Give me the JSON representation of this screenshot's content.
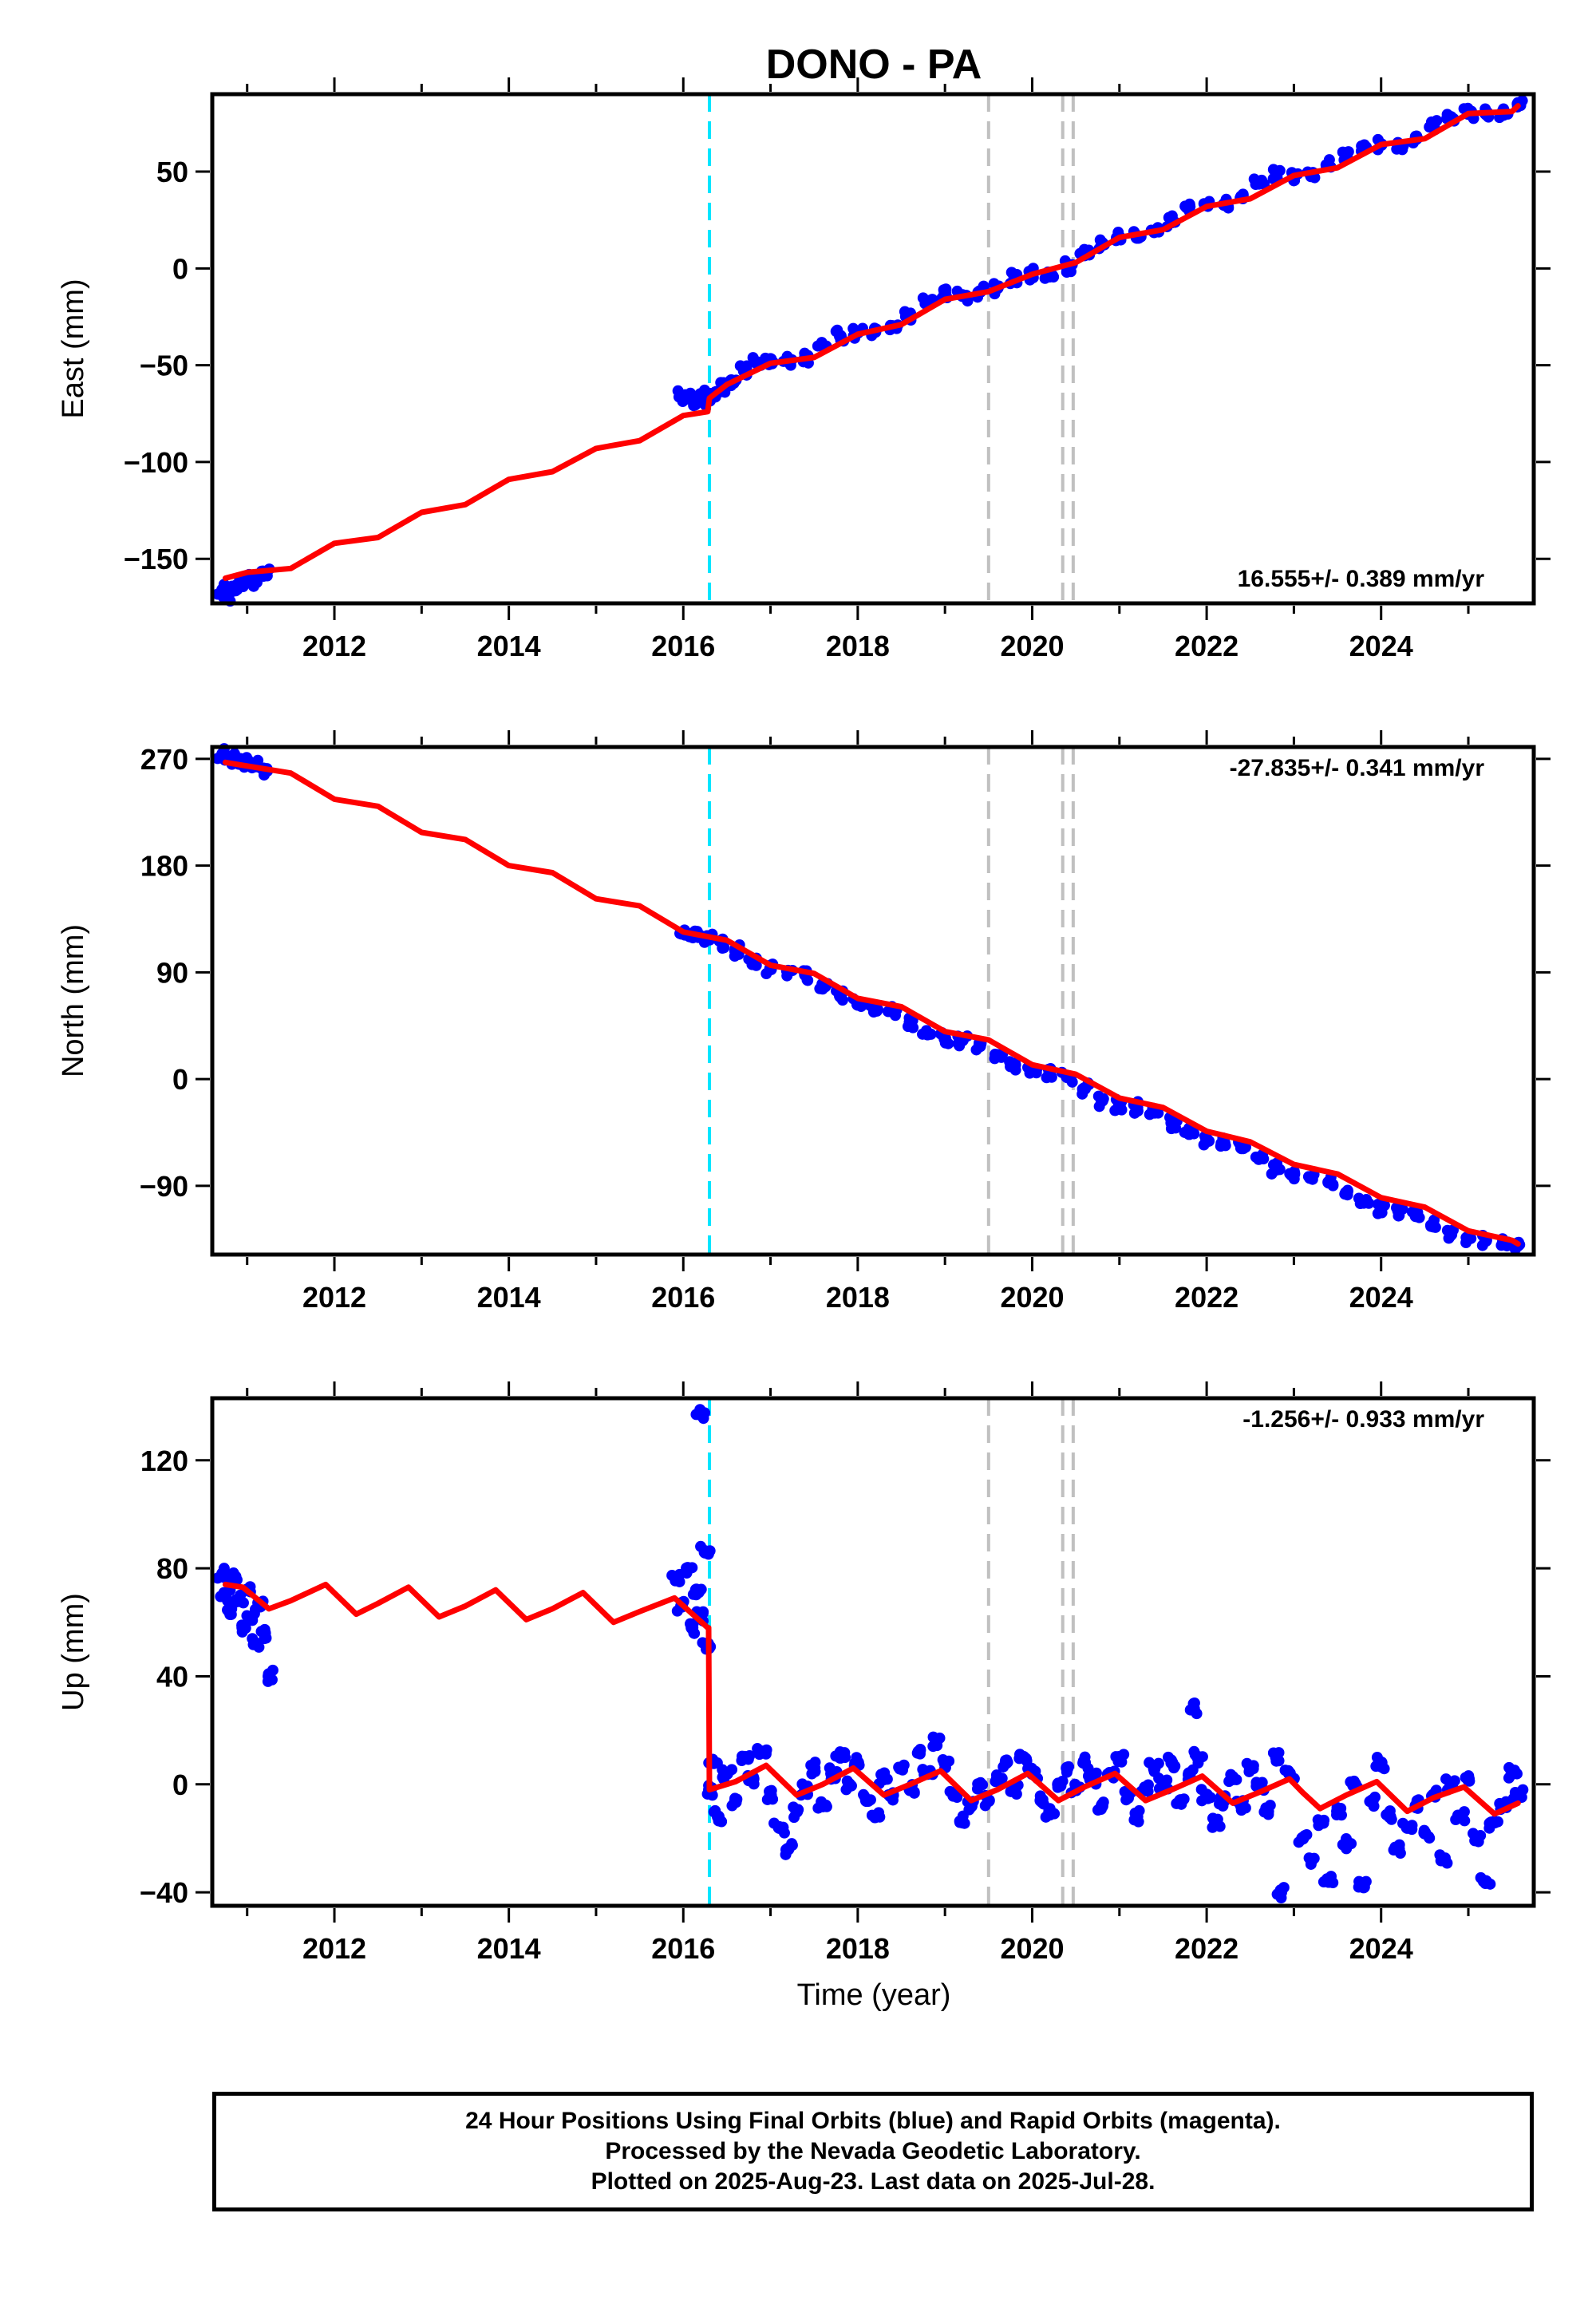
{
  "title": "DONO - PA",
  "xlabel": "Time (year)",
  "colors": {
    "data_points": "#0000ff",
    "model_line": "#ff0000",
    "antenna_change": "#00e5ff",
    "event_lines": "#c0c0c0"
  },
  "x_ticks": [
    "2012",
    "2014",
    "2016",
    "2018",
    "2020",
    "2022",
    "2024"
  ],
  "footer": {
    "line1": "24 Hour Positions Using Final Orbits (blue) and Rapid Orbits (magenta).",
    "line2": "Processed by the Nevada Geodetic Laboratory.",
    "line3": "Plotted on 2025-Aug-23. Last data on 2025-Jul-28."
  },
  "chart_data": [
    {
      "type": "scatter",
      "ylabel": "East (mm)",
      "rate_label": "16.555+/- 0.389 mm/yr",
      "xlim": [
        2010.6,
        2025.75
      ],
      "ylim": [
        -173,
        90
      ],
      "y_ticks": [
        -150,
        -100,
        -50,
        0,
        50
      ],
      "y_tick_labels": [
        "−150",
        "−100",
        "−50",
        "0",
        "50"
      ],
      "vertical_lines": [
        {
          "x": 2016.3,
          "kind": "antenna_change"
        },
        {
          "x": 2019.5,
          "kind": "event"
        },
        {
          "x": 2020.35,
          "kind": "event"
        },
        {
          "x": 2020.47,
          "kind": "event"
        }
      ],
      "model_line": {
        "x": [
          2010.75,
          2011.0,
          2011.5,
          2012.0,
          2012.5,
          2013.0,
          2013.5,
          2014.0,
          2014.5,
          2015.0,
          2015.5,
          2016.0,
          2016.28,
          2016.3,
          2016.5,
          2017.0,
          2017.5,
          2018.0,
          2018.5,
          2019.0,
          2019.5,
          2020.0,
          2020.5,
          2021.0,
          2021.5,
          2022.0,
          2022.5,
          2023.0,
          2023.5,
          2024.0,
          2024.5,
          2025.0,
          2025.5,
          2025.57
        ],
        "y": [
          -160,
          -157,
          -155,
          -142,
          -139,
          -126,
          -122,
          -109,
          -105,
          -93,
          -89,
          -76,
          -74,
          -67,
          -60,
          -49,
          -46,
          -34,
          -29,
          -16,
          -12,
          -3,
          3,
          16,
          20,
          32,
          36,
          48,
          52,
          64,
          67,
          80,
          81,
          84
        ]
      },
      "points": [
        [
          2010.72,
          -166
        ],
        [
          2010.78,
          -169
        ],
        [
          2010.85,
          -165
        ],
        [
          2010.92,
          -164
        ],
        [
          2011.0,
          -161
        ],
        [
          2011.08,
          -162
        ],
        [
          2011.15,
          -158
        ],
        [
          2011.22,
          -157
        ],
        [
          2015.98,
          -66
        ],
        [
          2016.05,
          -67
        ],
        [
          2016.12,
          -68
        ],
        [
          2016.2,
          -66
        ],
        [
          2016.27,
          -67
        ],
        [
          2016.3,
          -68
        ],
        [
          2016.38,
          -64
        ],
        [
          2016.45,
          -61
        ],
        [
          2016.55,
          -58
        ],
        [
          2016.7,
          -53
        ],
        [
          2016.85,
          -49
        ],
        [
          2017.0,
          -47
        ],
        [
          2017.2,
          -48
        ],
        [
          2017.4,
          -46
        ],
        [
          2017.6,
          -40
        ],
        [
          2017.8,
          -35
        ],
        [
          2018.0,
          -33
        ],
        [
          2018.2,
          -32
        ],
        [
          2018.4,
          -30
        ],
        [
          2018.6,
          -24
        ],
        [
          2018.8,
          -17
        ],
        [
          2019.0,
          -13
        ],
        [
          2019.2,
          -14
        ],
        [
          2019.4,
          -12
        ],
        [
          2019.6,
          -10
        ],
        [
          2019.8,
          -5
        ],
        [
          2020.0,
          -3
        ],
        [
          2020.2,
          -4
        ],
        [
          2020.4,
          1
        ],
        [
          2020.6,
          7
        ],
        [
          2020.8,
          13
        ],
        [
          2021.0,
          16
        ],
        [
          2021.2,
          16
        ],
        [
          2021.4,
          19
        ],
        [
          2021.6,
          24
        ],
        [
          2021.8,
          32
        ],
        [
          2022.0,
          33
        ],
        [
          2022.2,
          33
        ],
        [
          2022.4,
          37
        ],
        [
          2022.6,
          44
        ],
        [
          2022.8,
          49
        ],
        [
          2023.0,
          48
        ],
        [
          2023.2,
          48
        ],
        [
          2023.4,
          53
        ],
        [
          2023.6,
          58
        ],
        [
          2023.8,
          63
        ],
        [
          2024.0,
          64
        ],
        [
          2024.2,
          63
        ],
        [
          2024.4,
          67
        ],
        [
          2024.6,
          74
        ],
        [
          2024.8,
          78
        ],
        [
          2025.0,
          80
        ],
        [
          2025.2,
          80
        ],
        [
          2025.4,
          81
        ],
        [
          2025.57,
          85
        ]
      ]
    },
    {
      "type": "scatter",
      "ylabel": "North (mm)",
      "rate_label": "-27.835+/- 0.341 mm/yr",
      "xlim": [
        2010.6,
        2025.75
      ],
      "ylim": [
        -148,
        280
      ],
      "y_ticks": [
        -90,
        0,
        90,
        180,
        270
      ],
      "y_tick_labels": [
        "−90",
        "0",
        "90",
        "180",
        "270"
      ],
      "vertical_lines": [
        {
          "x": 2016.3,
          "kind": "antenna_change"
        },
        {
          "x": 2019.5,
          "kind": "event"
        },
        {
          "x": 2020.35,
          "kind": "event"
        },
        {
          "x": 2020.47,
          "kind": "event"
        }
      ],
      "model_line": {
        "x": [
          2010.75,
          2011.0,
          2011.5,
          2012.0,
          2012.5,
          2013.0,
          2013.5,
          2014.0,
          2014.5,
          2015.0,
          2015.5,
          2016.0,
          2016.5,
          2017.0,
          2017.5,
          2018.0,
          2018.5,
          2019.0,
          2019.5,
          2020.0,
          2020.5,
          2021.0,
          2021.5,
          2022.0,
          2022.5,
          2023.0,
          2023.5,
          2024.0,
          2024.5,
          2025.0,
          2025.5,
          2025.57
        ],
        "y": [
          267,
          264,
          258,
          236,
          230,
          208,
          202,
          180,
          174,
          152,
          146,
          124,
          117,
          96,
          89,
          68,
          61,
          40,
          33,
          12,
          4,
          -16,
          -24,
          -44,
          -53,
          -72,
          -80,
          -100,
          -108,
          -128,
          -136,
          -139
        ]
      },
      "points": [
        [
          2010.72,
          274
        ],
        [
          2010.8,
          270
        ],
        [
          2010.9,
          268
        ],
        [
          2011.0,
          266
        ],
        [
          2011.1,
          264
        ],
        [
          2011.2,
          260
        ],
        [
          2015.98,
          123
        ],
        [
          2016.1,
          122
        ],
        [
          2016.2,
          120
        ],
        [
          2016.3,
          118
        ],
        [
          2016.45,
          115
        ],
        [
          2016.6,
          108
        ],
        [
          2016.8,
          98
        ],
        [
          2017.0,
          93
        ],
        [
          2017.2,
          91
        ],
        [
          2017.4,
          88
        ],
        [
          2017.6,
          80
        ],
        [
          2017.8,
          70
        ],
        [
          2018.0,
          63
        ],
        [
          2018.2,
          61
        ],
        [
          2018.4,
          57
        ],
        [
          2018.6,
          48
        ],
        [
          2018.8,
          38
        ],
        [
          2019.0,
          34
        ],
        [
          2019.2,
          33
        ],
        [
          2019.4,
          29
        ],
        [
          2019.6,
          20
        ],
        [
          2019.8,
          12
        ],
        [
          2020.0,
          7
        ],
        [
          2020.2,
          5
        ],
        [
          2020.4,
          2
        ],
        [
          2020.6,
          -8
        ],
        [
          2020.8,
          -18
        ],
        [
          2021.0,
          -22
        ],
        [
          2021.2,
          -24
        ],
        [
          2021.4,
          -28
        ],
        [
          2021.6,
          -37
        ],
        [
          2021.8,
          -46
        ],
        [
          2022.0,
          -51
        ],
        [
          2022.2,
          -54
        ],
        [
          2022.4,
          -58
        ],
        [
          2022.6,
          -67
        ],
        [
          2022.8,
          -76
        ],
        [
          2023.0,
          -80
        ],
        [
          2023.2,
          -83
        ],
        [
          2023.4,
          -87
        ],
        [
          2023.6,
          -96
        ],
        [
          2023.8,
          -104
        ],
        [
          2024.0,
          -109
        ],
        [
          2024.2,
          -111
        ],
        [
          2024.4,
          -115
        ],
        [
          2024.6,
          -124
        ],
        [
          2024.8,
          -131
        ],
        [
          2025.0,
          -134
        ],
        [
          2025.2,
          -136
        ],
        [
          2025.4,
          -138
        ],
        [
          2025.57,
          -140
        ]
      ]
    },
    {
      "type": "scatter",
      "ylabel": "Up (mm)",
      "rate_label": "-1.256+/- 0.933 mm/yr",
      "xlim": [
        2010.6,
        2025.75
      ],
      "ylim": [
        -45,
        143
      ],
      "y_ticks": [
        -40,
        0,
        40,
        80,
        120
      ],
      "y_tick_labels": [
        "−40",
        "0",
        "40",
        "80",
        "120"
      ],
      "vertical_lines": [
        {
          "x": 2016.3,
          "kind": "antenna_change"
        },
        {
          "x": 2019.5,
          "kind": "event"
        },
        {
          "x": 2020.35,
          "kind": "event"
        },
        {
          "x": 2020.47,
          "kind": "event"
        }
      ],
      "model_line": {
        "x": [
          2010.75,
          2010.95,
          2011.25,
          2011.5,
          2011.9,
          2012.25,
          2012.5,
          2012.85,
          2013.2,
          2013.5,
          2013.85,
          2014.2,
          2014.5,
          2014.85,
          2015.2,
          2015.5,
          2015.9,
          2016.28,
          2016.29,
          2016.3,
          2016.6,
          2016.95,
          2017.3,
          2017.6,
          2017.95,
          2018.3,
          2018.6,
          2018.95,
          2019.3,
          2019.6,
          2019.95,
          2020.3,
          2020.6,
          2020.95,
          2021.3,
          2021.6,
          2021.95,
          2022.3,
          2022.6,
          2022.95,
          2023.1,
          2023.3,
          2023.6,
          2023.95,
          2024.3,
          2024.6,
          2024.95,
          2025.3,
          2025.57
        ],
        "y": [
          74,
          73,
          65,
          68,
          74,
          63,
          67,
          73,
          62,
          66,
          72,
          61,
          65,
          71,
          60,
          64,
          69,
          58,
          58,
          -2,
          1,
          7,
          -4,
          0,
          6,
          -4,
          0,
          5,
          -6,
          -2,
          4,
          -6,
          -1,
          4,
          -6,
          -2,
          3,
          -7,
          -3,
          2,
          -3,
          -9,
          -4,
          1,
          -10,
          -5,
          -1,
          -11,
          -7
        ]
      },
      "points": [
        [
          2010.72,
          78
        ],
        [
          2010.75,
          70
        ],
        [
          2010.8,
          64
        ],
        [
          2010.85,
          76
        ],
        [
          2010.9,
          68
        ],
        [
          2010.95,
          58
        ],
        [
          2011.0,
          72
        ],
        [
          2011.05,
          62
        ],
        [
          2011.1,
          52
        ],
        [
          2011.15,
          66
        ],
        [
          2011.2,
          56
        ],
        [
          2011.25,
          40
        ],
        [
          2015.92,
          76
        ],
        [
          2015.98,
          66
        ],
        [
          2016.05,
          80
        ],
        [
          2016.1,
          58
        ],
        [
          2016.15,
          72
        ],
        [
          2016.2,
          62
        ],
        [
          2016.25,
          86
        ],
        [
          2016.28,
          52
        ],
        [
          2016.2,
          137
        ],
        [
          2016.3,
          -2
        ],
        [
          2016.35,
          8
        ],
        [
          2016.4,
          -12
        ],
        [
          2016.5,
          4
        ],
        [
          2016.6,
          -6
        ],
        [
          2016.7,
          10
        ],
        [
          2016.8,
          2
        ],
        [
          2016.9,
          12
        ],
        [
          2017.0,
          -4
        ],
        [
          2017.1,
          -16
        ],
        [
          2017.2,
          -24
        ],
        [
          2017.3,
          -10
        ],
        [
          2017.4,
          -2
        ],
        [
          2017.5,
          6
        ],
        [
          2017.6,
          -8
        ],
        [
          2017.7,
          4
        ],
        [
          2017.8,
          10
        ],
        [
          2017.9,
          0
        ],
        [
          2018.0,
          8
        ],
        [
          2018.1,
          -6
        ],
        [
          2018.2,
          -12
        ],
        [
          2018.3,
          2
        ],
        [
          2018.4,
          -4
        ],
        [
          2018.5,
          6
        ],
        [
          2018.6,
          -2
        ],
        [
          2018.7,
          12
        ],
        [
          2018.8,
          4
        ],
        [
          2018.9,
          16
        ],
        [
          2019.0,
          8
        ],
        [
          2019.1,
          -4
        ],
        [
          2019.2,
          -14
        ],
        [
          2019.3,
          -8
        ],
        [
          2019.4,
          0
        ],
        [
          2019.5,
          -6
        ],
        [
          2019.6,
          2
        ],
        [
          2019.7,
          8
        ],
        [
          2019.8,
          -2
        ],
        [
          2019.9,
          10
        ],
        [
          2020.0,
          4
        ],
        [
          2020.1,
          -6
        ],
        [
          2020.2,
          -10
        ],
        [
          2020.3,
          0
        ],
        [
          2020.4,
          6
        ],
        [
          2020.5,
          -2
        ],
        [
          2020.6,
          8
        ],
        [
          2020.7,
          2
        ],
        [
          2020.8,
          -8
        ],
        [
          2020.9,
          4
        ],
        [
          2021.0,
          10
        ],
        [
          2021.1,
          -4
        ],
        [
          2021.2,
          -12
        ],
        [
          2021.3,
          -2
        ],
        [
          2021.4,
          6
        ],
        [
          2021.5,
          0
        ],
        [
          2021.6,
          8
        ],
        [
          2021.7,
          -6
        ],
        [
          2021.8,
          4
        ],
        [
          2021.85,
          28
        ],
        [
          2021.9,
          10
        ],
        [
          2022.0,
          -4
        ],
        [
          2022.1,
          -14
        ],
        [
          2022.2,
          -6
        ],
        [
          2022.3,
          2
        ],
        [
          2022.4,
          -8
        ],
        [
          2022.5,
          6
        ],
        [
          2022.6,
          0
        ],
        [
          2022.7,
          -10
        ],
        [
          2022.8,
          10
        ],
        [
          2022.85,
          -40
        ],
        [
          2022.95,
          4
        ],
        [
          2023.1,
          -20
        ],
        [
          2023.2,
          -28
        ],
        [
          2023.3,
          -14
        ],
        [
          2023.4,
          -36
        ],
        [
          2023.5,
          -10
        ],
        [
          2023.6,
          -22
        ],
        [
          2023.7,
          0
        ],
        [
          2023.8,
          -38
        ],
        [
          2023.9,
          -6
        ],
        [
          2024.0,
          8
        ],
        [
          2024.1,
          -12
        ],
        [
          2024.2,
          -24
        ],
        [
          2024.3,
          -16
        ],
        [
          2024.4,
          -8
        ],
        [
          2024.5,
          -18
        ],
        [
          2024.6,
          -4
        ],
        [
          2024.7,
          -28
        ],
        [
          2024.8,
          0
        ],
        [
          2024.9,
          -12
        ],
        [
          2025.0,
          2
        ],
        [
          2025.1,
          -20
        ],
        [
          2025.2,
          -36
        ],
        [
          2025.3,
          -14
        ],
        [
          2025.4,
          -8
        ],
        [
          2025.5,
          4
        ],
        [
          2025.57,
          -4
        ]
      ]
    }
  ]
}
